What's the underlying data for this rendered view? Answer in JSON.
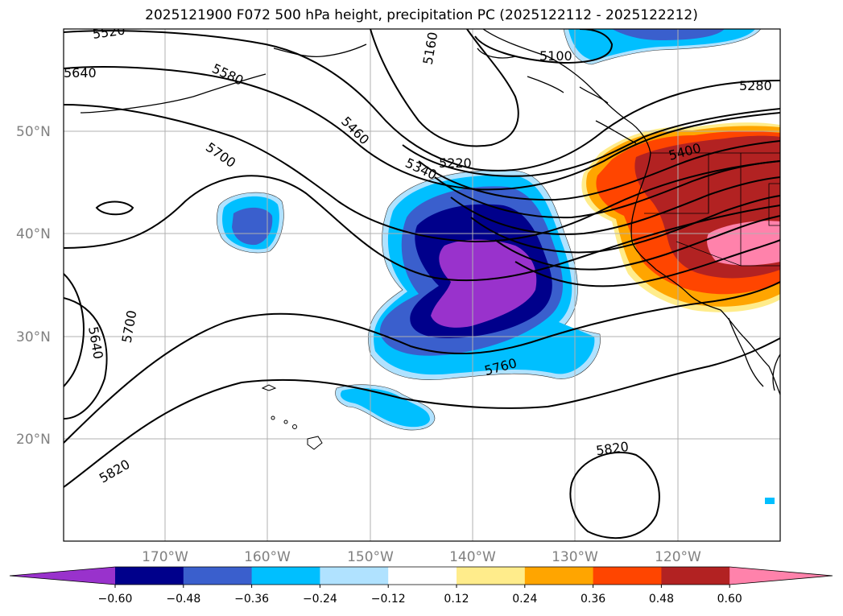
{
  "title": "2025121900 F072 500 hPa height, precipitation PC (2025122112 - 2025122212)",
  "latitude_labels": [
    "50°N",
    "40°N",
    "30°N",
    "20°N"
  ],
  "longitude_labels": [
    "170°W",
    "160°W",
    "150°W",
    "140°W",
    "130°W",
    "120°W"
  ],
  "colorbar": {
    "ticks": [
      "−0.60",
      "−0.48",
      "−0.36",
      "−0.24",
      "−0.12",
      "0.12",
      "0.24",
      "0.36",
      "0.48",
      "0.60"
    ],
    "colors": [
      "#9932cc",
      "#00008b",
      "#3a5fcd",
      "#00bfff",
      "#b0e2ff",
      "#ffffff",
      "#ffec8b",
      "#ffa500",
      "#ff4500",
      "#b22222",
      "#ff82ab"
    ]
  },
  "contour_labels": [
    "5220",
    "5160",
    "5100",
    "5280",
    "5400",
    "5460",
    "5520",
    "5580",
    "5640",
    "5640",
    "5700",
    "5700",
    "5760",
    "5820",
    "5820",
    "5340"
  ]
}
